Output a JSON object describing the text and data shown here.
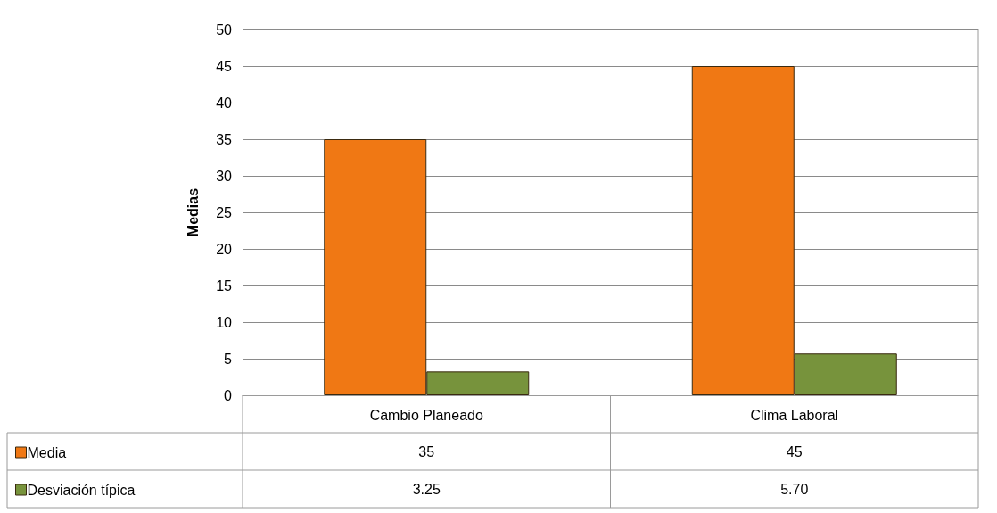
{
  "chart_data": {
    "type": "bar",
    "ylabel": "Medias",
    "categories": [
      "Cambio Planeado",
      "Clima Laboral"
    ],
    "series": [
      {
        "name": "Media",
        "color": "#f07814",
        "values": [
          35,
          45
        ],
        "value_labels": [
          "35",
          "45"
        ]
      },
      {
        "name": "Desviación típica",
        "color": "#77933c",
        "values": [
          3.25,
          5.7
        ],
        "value_labels": [
          "3.25",
          "5.70"
        ]
      }
    ],
    "ylim": [
      0,
      50
    ],
    "yticks": [
      0,
      5,
      10,
      15,
      20,
      25,
      30,
      35,
      40,
      45,
      50
    ],
    "grid": "y",
    "legend": "bottom left"
  }
}
